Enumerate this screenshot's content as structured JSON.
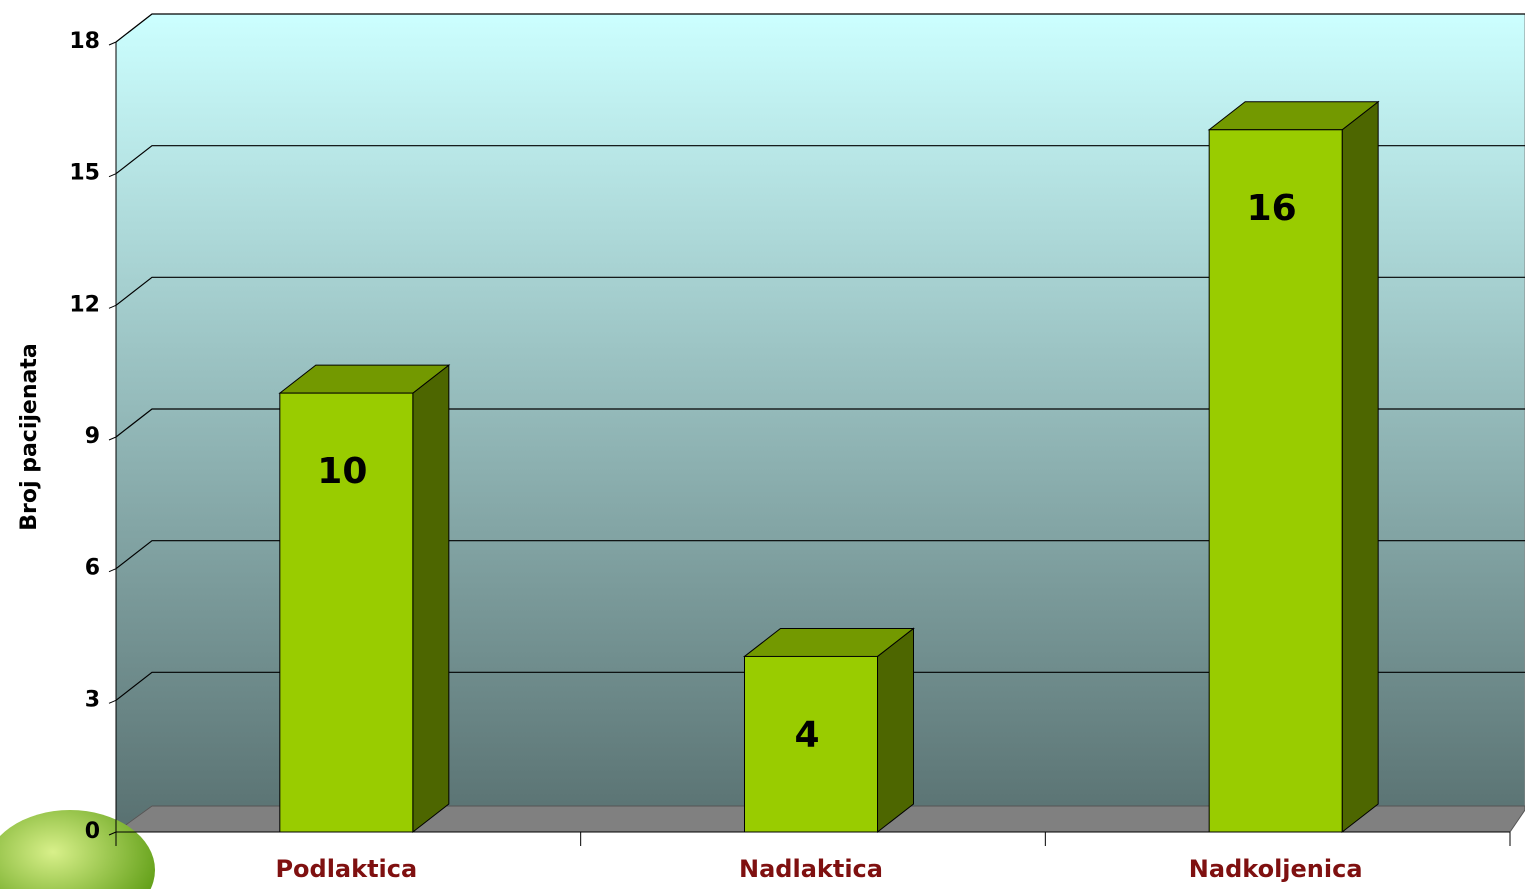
{
  "chart_data": {
    "type": "bar3d",
    "y_axis_label": "Broj pacijenata",
    "categories": [
      "Podlaktica",
      "Nadlaktica",
      "Nadkoljenica"
    ],
    "values": [
      10,
      4,
      16
    ],
    "color": "#99cc00",
    "ylim": [
      0,
      18
    ],
    "yticks": [
      0,
      3,
      6,
      9,
      12,
      15,
      18
    ],
    "grid": true
  }
}
